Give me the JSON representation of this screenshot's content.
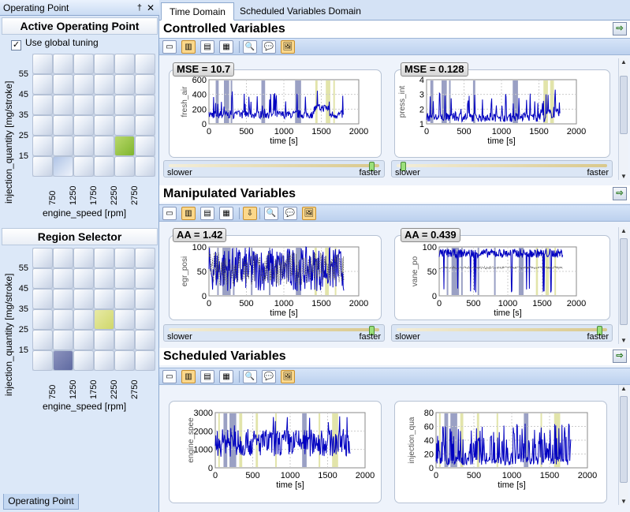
{
  "left": {
    "title": "Operating Point",
    "pin_glyph": " †",
    "close_glyph": "✕",
    "active": {
      "heading": "Active Operating Point",
      "checkbox_label": "Use global tuning",
      "checked": true,
      "yticks": [
        "55",
        "45",
        "35",
        "25",
        "15"
      ],
      "xticks": [
        "750",
        "1250",
        "1750",
        "2250",
        "2750"
      ],
      "ylabel": "injection_quantity [mg/stroke]",
      "xlabel": "engine_speed [rpm]"
    },
    "region": {
      "heading": "Region Selector",
      "yticks": [
        "55",
        "45",
        "35",
        "25",
        "15"
      ],
      "xticks": [
        "750",
        "1250",
        "1750",
        "2250",
        "2750"
      ],
      "ylabel": "injection_quantity [mg/stroke]",
      "xlabel": "engine_speed [rpm]"
    },
    "bottom_tab": "Operating Point"
  },
  "tabs": [
    "Time Domain",
    "Scheduled Variables Domain"
  ],
  "groups": {
    "controlled": "Controlled Variables",
    "manipulated": "Manipulated Variables",
    "scheduled": "Scheduled Variables"
  },
  "slider_labels": {
    "slow": "slower",
    "fast": "faster"
  },
  "sliders": {
    "cv1": 0.97,
    "cv2": 0.02,
    "mv1": 0.97,
    "mv2": 0.97
  },
  "colors": {
    "series": "#0000c0",
    "shade_blue": "#9aa0c4",
    "shade_yellow": "#e2e4aa",
    "accent_green": "#8bc34a"
  },
  "plots": {
    "cv1": {
      "badge": "MSE = 10.7",
      "ylabel": "fresh_air",
      "xlabel": "time [s]",
      "yticks": [
        "0",
        "200",
        "400",
        "600"
      ],
      "xticks": [
        "0",
        "500",
        "1000",
        "1500",
        "2000"
      ]
    },
    "cv2": {
      "badge": "MSE = 0.128",
      "ylabel": "press_int",
      "xlabel": "time [s]",
      "yticks": [
        "1",
        "2",
        "3",
        "4"
      ],
      "xticks": [
        "0",
        "500",
        "1000",
        "1500",
        "2000"
      ]
    },
    "mv1": {
      "badge": "AA = 1.42",
      "ylabel": "egr_posi",
      "xlabel": "time [s]",
      "yticks": [
        "0",
        "50",
        "100"
      ],
      "xticks": [
        "0",
        "500",
        "1000",
        "1500",
        "2000"
      ]
    },
    "mv2": {
      "badge": "AA = 0.439",
      "ylabel": "vane_po",
      "xlabel": "time [s]",
      "yticks": [
        "0",
        "50",
        "100"
      ],
      "xticks": [
        "0",
        "500",
        "1000",
        "1500",
        "2000"
      ]
    },
    "sv1": {
      "badge": "",
      "ylabel": "engine_spee",
      "xlabel": "time [s]",
      "yticks": [
        "0",
        "1000",
        "2000",
        "3000"
      ],
      "xticks": [
        "0",
        "500",
        "1000",
        "1500",
        "2000"
      ]
    },
    "sv2": {
      "badge": "",
      "ylabel": "injection_qua",
      "xlabel": "time [s]",
      "yticks": [
        "0",
        "20",
        "40",
        "60",
        "80"
      ],
      "xticks": [
        "0",
        "500",
        "1000",
        "1500",
        "2000"
      ]
    }
  }
}
